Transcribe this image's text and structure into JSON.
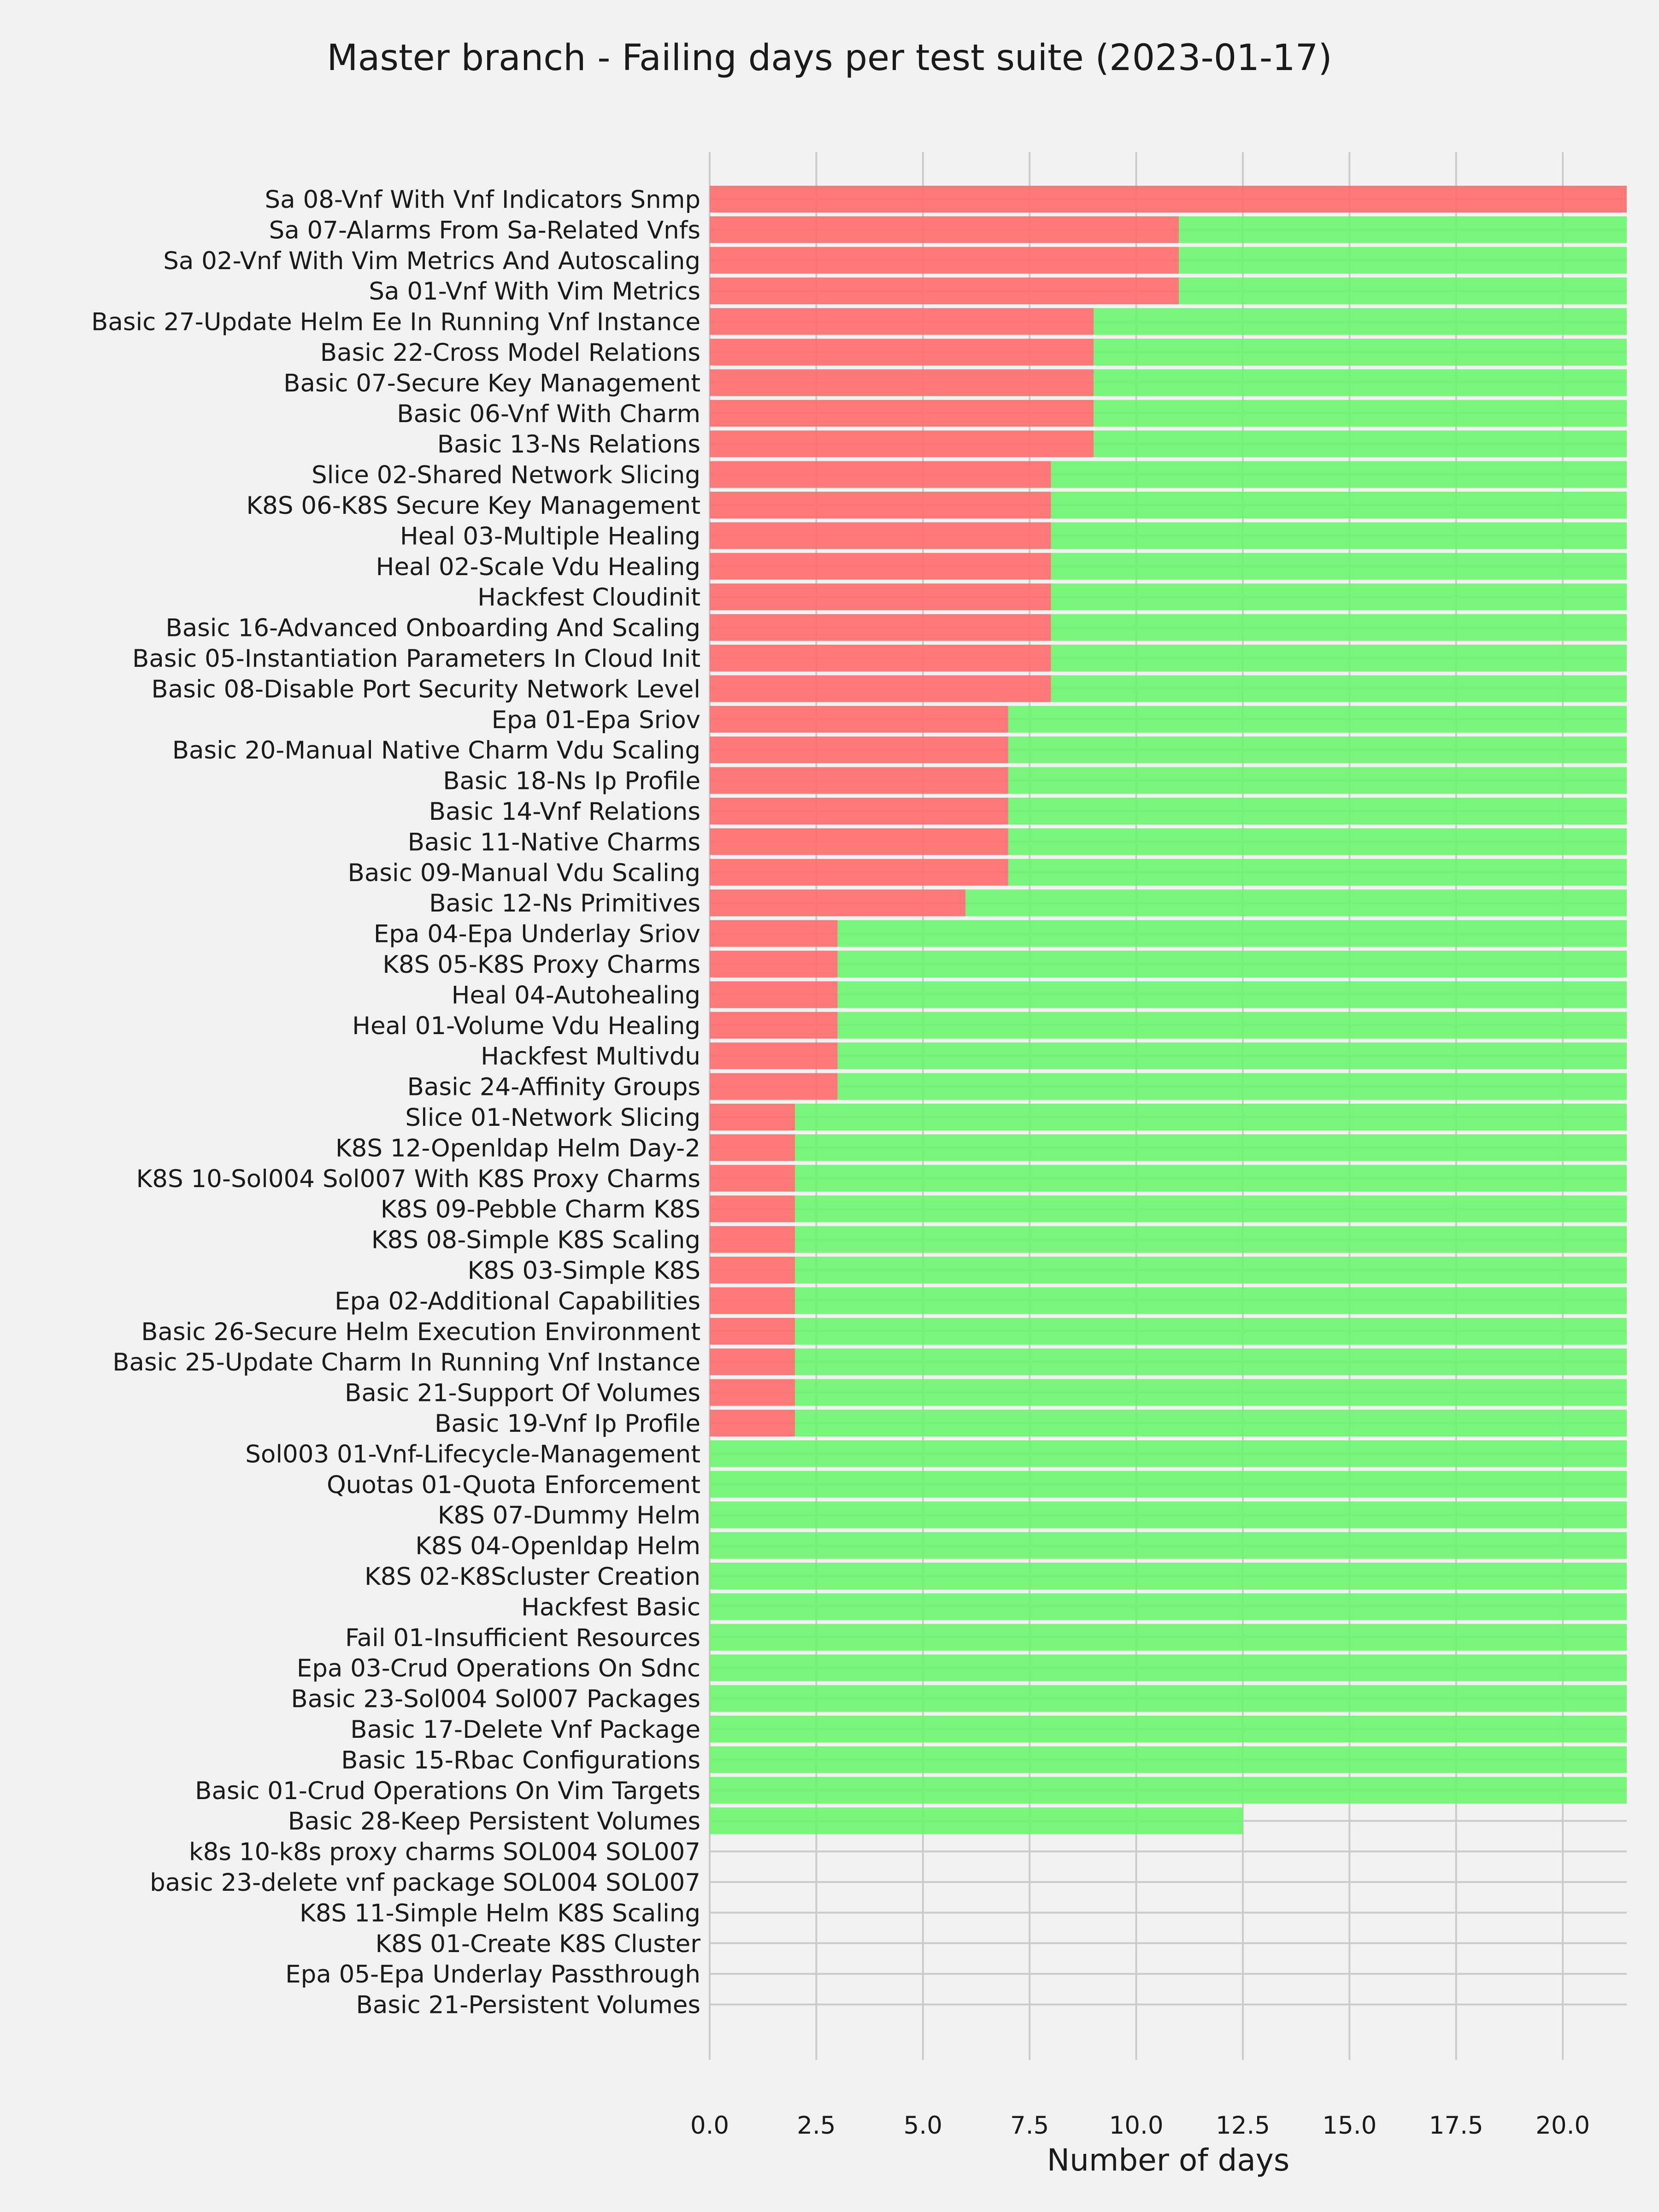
{
  "chart_data": {
    "type": "bar",
    "orientation": "horizontal",
    "stacked": true,
    "title": "Master branch - Failing days per test suite (2023-01-17)",
    "xlabel": "Number of days",
    "ylabel": "",
    "xlim": [
      0,
      21.5
    ],
    "xticks": [
      "0.0",
      "2.5",
      "5.0",
      "7.5",
      "10.0",
      "12.5",
      "15.0",
      "17.5",
      "20.0"
    ],
    "xtick_values": [
      0,
      2.5,
      5,
      7.5,
      10,
      12.5,
      15,
      17.5,
      20
    ],
    "grid": true,
    "legend": "none",
    "categories": [
      "Sa 08-Vnf With Vnf Indicators Snmp",
      "Sa 07-Alarms From Sa-Related Vnfs",
      "Sa 02-Vnf With Vim Metrics And Autoscaling",
      "Sa 01-Vnf With Vim Metrics",
      "Basic 27-Update Helm Ee In Running Vnf Instance",
      "Basic 22-Cross Model Relations",
      "Basic 07-Secure Key Management",
      "Basic 06-Vnf With Charm",
      "Basic 13-Ns Relations",
      "Slice 02-Shared Network Slicing",
      "K8S 06-K8S Secure Key Management",
      "Heal 03-Multiple Healing",
      "Heal 02-Scale Vdu Healing",
      "Hackfest Cloudinit",
      "Basic 16-Advanced Onboarding And Scaling",
      "Basic 05-Instantiation Parameters In Cloud Init",
      "Basic 08-Disable Port Security Network Level",
      "Epa 01-Epa Sriov",
      "Basic 20-Manual Native Charm Vdu Scaling",
      "Basic 18-Ns Ip Profile",
      "Basic 14-Vnf Relations",
      "Basic 11-Native Charms",
      "Basic 09-Manual Vdu Scaling",
      "Basic 12-Ns Primitives",
      "Epa 04-Epa Underlay Sriov",
      "K8S 05-K8S Proxy Charms",
      "Heal 04-Autohealing",
      "Heal 01-Volume Vdu Healing",
      "Hackfest Multivdu",
      "Basic 24-Affinity Groups",
      "Slice 01-Network Slicing",
      "K8S 12-Openldap Helm Day-2",
      "K8S 10-Sol004 Sol007 With K8S Proxy Charms",
      "K8S 09-Pebble Charm K8S",
      "K8S 08-Simple K8S Scaling",
      "K8S 03-Simple K8S",
      "Epa 02-Additional Capabilities",
      "Basic 26-Secure Helm Execution Environment",
      "Basic 25-Update Charm In Running Vnf Instance",
      "Basic 21-Support Of Volumes",
      "Basic 19-Vnf Ip Profile",
      "Sol003 01-Vnf-Lifecycle-Management",
      "Quotas 01-Quota Enforcement",
      "K8S 07-Dummy Helm",
      "K8S 04-Openldap Helm",
      "K8S 02-K8Scluster Creation",
      "Hackfest Basic",
      "Fail 01-Insufficient Resources",
      "Epa 03-Crud Operations On Sdnc",
      "Basic 23-Sol004 Sol007 Packages",
      "Basic 17-Delete Vnf Package",
      "Basic 15-Rbac Configurations",
      "Basic 01-Crud Operations On Vim Targets",
      "Basic 28-Keep Persistent Volumes",
      "k8s 10-k8s proxy charms SOL004 SOL007",
      "basic 23-delete vnf package SOL004 SOL007",
      "K8S 11-Simple Helm K8S Scaling",
      "K8S 01-Create K8S Cluster",
      "Epa 05-Epa Underlay Passthrough",
      "Basic 21-Persistent Volumes"
    ],
    "series": [
      {
        "color": "#ff6b6b",
        "values": [
          21.5,
          11,
          11,
          11,
          9,
          9,
          9,
          9,
          9,
          8,
          8,
          8,
          8,
          8,
          8,
          8,
          8,
          7,
          7,
          7,
          7,
          7,
          7,
          6,
          3,
          3,
          3,
          3,
          3,
          3,
          2,
          2,
          2,
          2,
          2,
          2,
          2,
          2,
          2,
          2,
          2,
          0,
          0,
          0,
          0,
          0,
          0,
          0,
          0,
          0,
          0,
          0,
          0,
          0,
          0,
          0,
          0,
          0,
          0,
          0
        ]
      },
      {
        "color": "#6bf56b",
        "values": [
          0,
          10.5,
          10.5,
          10.5,
          12.5,
          12.5,
          12.5,
          12.5,
          12.5,
          13.5,
          13.5,
          13.5,
          13.5,
          13.5,
          13.5,
          13.5,
          13.5,
          14.5,
          14.5,
          14.5,
          14.5,
          14.5,
          14.5,
          15.5,
          18.5,
          18.5,
          18.5,
          18.5,
          18.5,
          18.5,
          19.5,
          19.5,
          19.5,
          19.5,
          19.5,
          19.5,
          19.5,
          19.5,
          19.5,
          19.5,
          19.5,
          21.5,
          21.5,
          21.5,
          21.5,
          21.5,
          21.5,
          21.5,
          21.5,
          21.5,
          21.5,
          21.5,
          21.5,
          12.5,
          0,
          0,
          0,
          0,
          0,
          0
        ]
      }
    ]
  }
}
